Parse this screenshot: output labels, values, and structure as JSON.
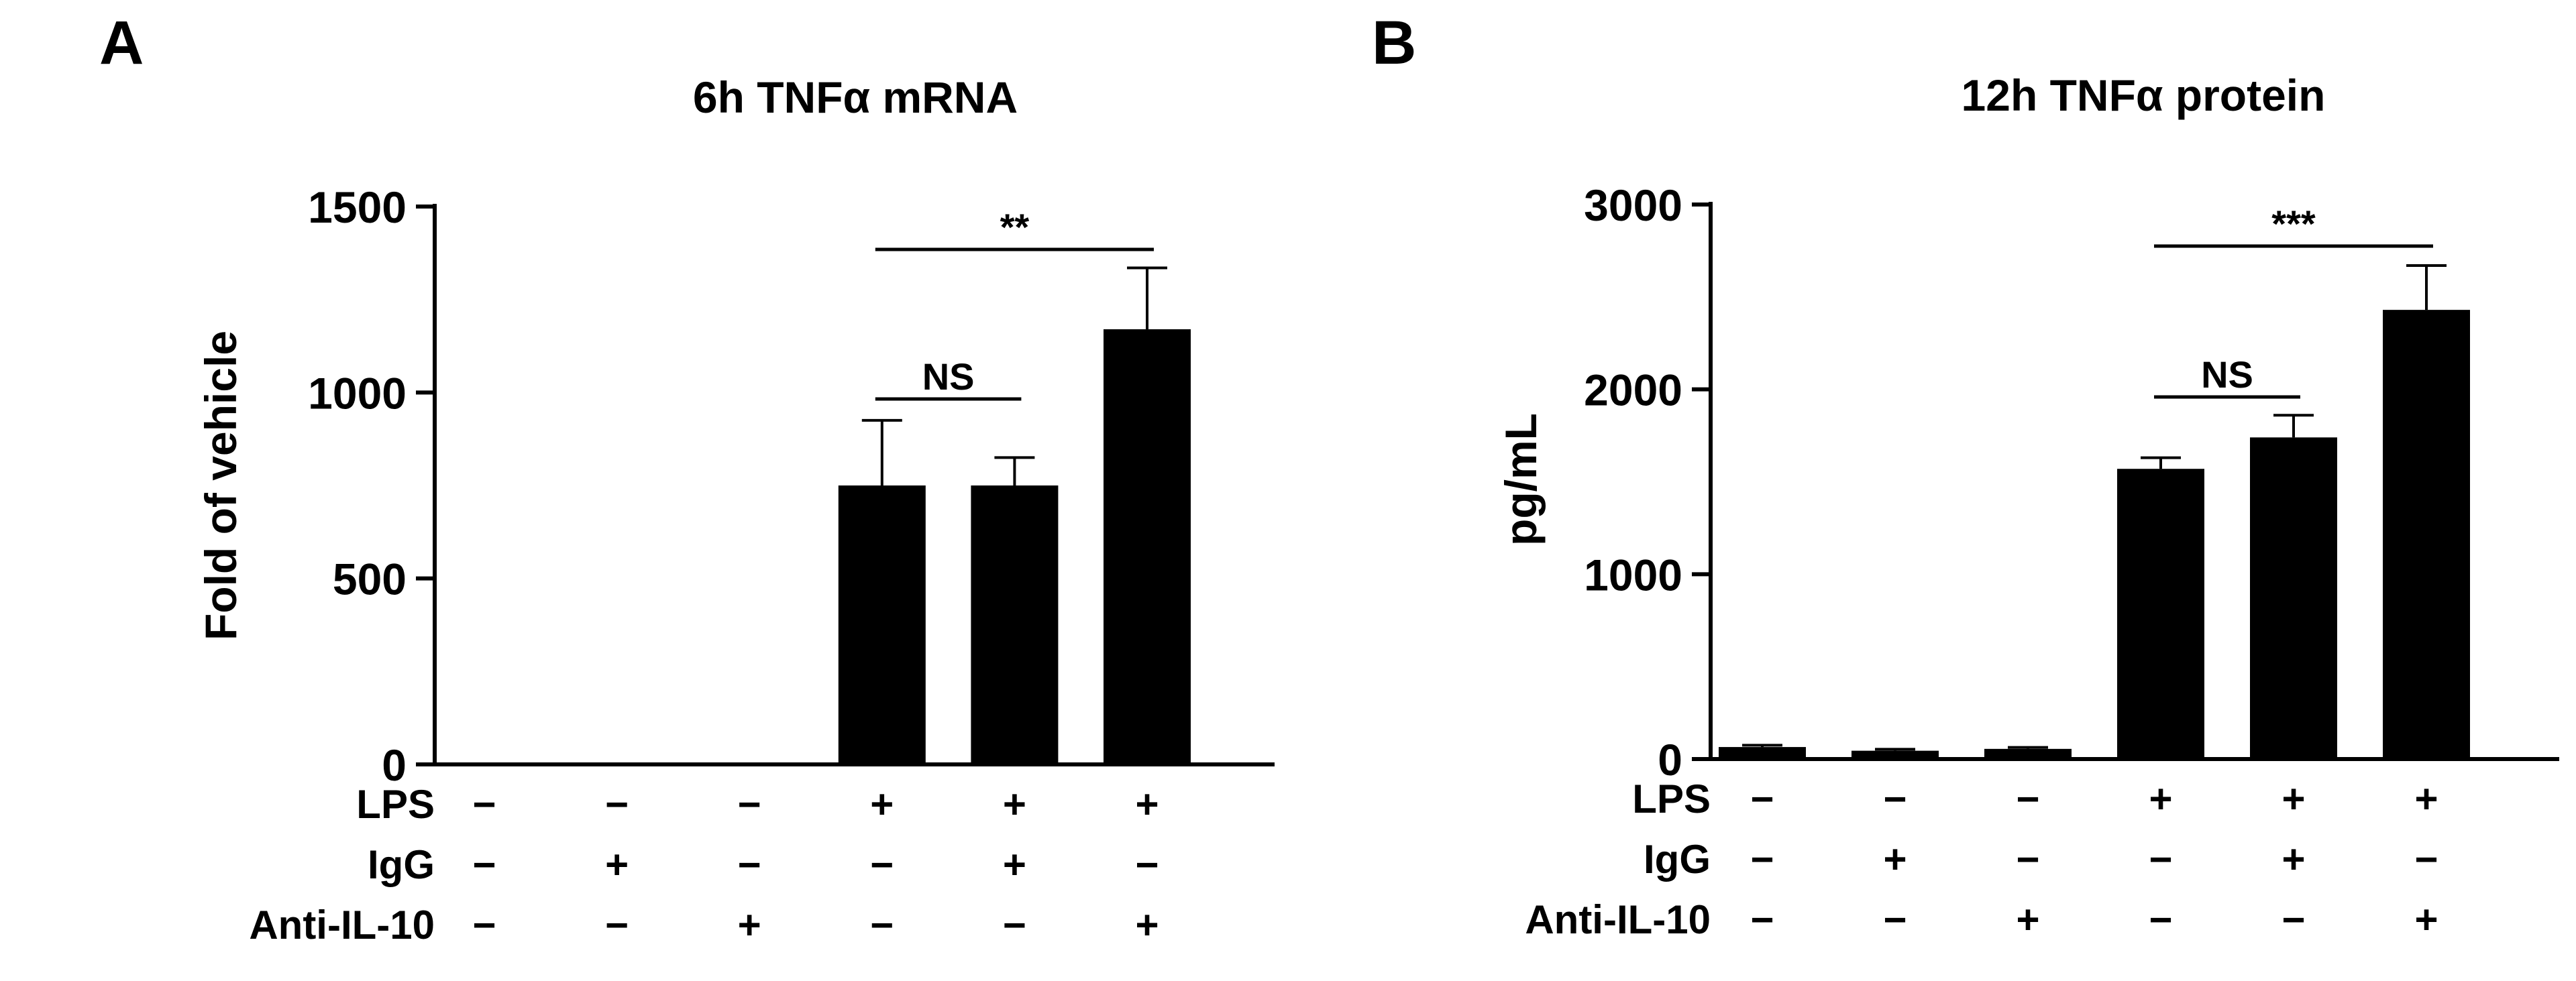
{
  "figure": {
    "panels": [
      {
        "letter": "A"
      },
      {
        "letter": "B"
      }
    ]
  },
  "chart_data": [
    {
      "type": "bar",
      "title": "6h TNFα mRNA",
      "xlabel": "",
      "ylabel": "Fold of vehicle",
      "ylim": [
        0,
        1500
      ],
      "yticks": [
        0,
        500,
        1000,
        1500
      ],
      "grid": false,
      "bar_color": "#000000",
      "categories": [
        "1",
        "2",
        "3",
        "4",
        "5",
        "6"
      ],
      "values": [
        0,
        0,
        0,
        750,
        750,
        1170
      ],
      "errors": [
        0,
        0,
        0,
        175,
        75,
        165
      ],
      "treatments": [
        {
          "label": "LPS",
          "signs": [
            "−",
            "−",
            "−",
            "+",
            "+",
            "+"
          ]
        },
        {
          "label": "IgG",
          "signs": [
            "−",
            "+",
            "−",
            "−",
            "+",
            "−"
          ]
        },
        {
          "label": "Anti-IL-10",
          "signs": [
            "−",
            "−",
            "+",
            "−",
            "−",
            "+"
          ]
        }
      ],
      "significance": [
        {
          "from": 3,
          "to": 4,
          "label": "NS"
        },
        {
          "from": 3,
          "to": 5,
          "label": "**"
        }
      ]
    },
    {
      "type": "bar",
      "title": "12h TNFα protein",
      "xlabel": "",
      "ylabel": "pg/mL",
      "ylim": [
        0,
        3000
      ],
      "yticks": [
        0,
        1000,
        2000,
        3000
      ],
      "grid": false,
      "bar_color": "#000000",
      "categories": [
        "1",
        "2",
        "3",
        "4",
        "5",
        "6"
      ],
      "values": [
        65,
        45,
        55,
        1570,
        1740,
        2430
      ],
      "errors": [
        10,
        8,
        8,
        60,
        120,
        240
      ],
      "treatments": [
        {
          "label": "LPS",
          "signs": [
            "−",
            "−",
            "−",
            "+",
            "+",
            "+"
          ]
        },
        {
          "label": "IgG",
          "signs": [
            "−",
            "+",
            "−",
            "−",
            "+",
            "−"
          ]
        },
        {
          "label": "Anti-IL-10",
          "signs": [
            "−",
            "−",
            "+",
            "−",
            "−",
            "+"
          ]
        }
      ],
      "significance": [
        {
          "from": 3,
          "to": 4,
          "label": "NS"
        },
        {
          "from": 3,
          "to": 5,
          "label": "***"
        }
      ]
    }
  ]
}
